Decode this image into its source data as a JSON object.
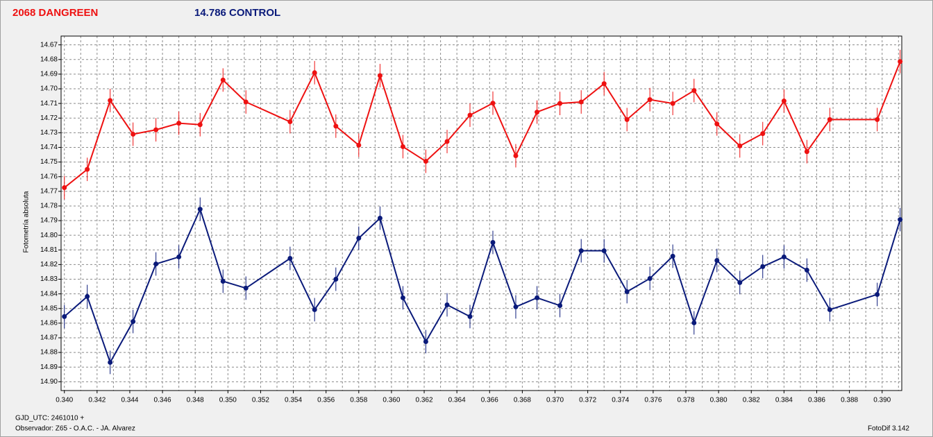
{
  "chart_data": {
    "type": "errorline",
    "xlabel": "GJD_UTC: 2461010 +",
    "ylabel": "Fotometría absoluta",
    "footer_left": "Observador: Z65 - O.A.C. - JA. Alvarez",
    "footer_right": "FotoDif 3.142",
    "x": [
      0.34,
      0.3414,
      0.3428,
      0.3442,
      0.3456,
      0.347,
      0.3483,
      0.3497,
      0.3511,
      0.3538,
      0.3553,
      0.3566,
      0.358,
      0.3593,
      0.3607,
      0.3621,
      0.3634,
      0.3648,
      0.3662,
      0.3676,
      0.3689,
      0.3703,
      0.3716,
      0.373,
      0.3744,
      0.3758,
      0.3772,
      0.3785,
      0.3799,
      0.3813,
      0.3827,
      0.384,
      0.3854,
      0.3868,
      0.3897,
      0.3911
    ],
    "series": [
      {
        "name": "2068 DANGREEN",
        "color": "#ee1111",
        "values": [
          14.7675,
          14.755,
          14.708,
          14.731,
          14.728,
          14.7235,
          14.7245,
          14.694,
          14.709,
          14.7225,
          14.689,
          14.7255,
          14.7385,
          14.691,
          14.7395,
          14.7495,
          14.736,
          14.718,
          14.7098,
          14.7457,
          14.7159,
          14.71,
          14.709,
          14.6965,
          14.721,
          14.7074,
          14.71,
          14.7012,
          14.724,
          14.739,
          14.7306,
          14.7083,
          14.7429,
          14.721,
          14.721,
          14.6814
        ],
        "errors": [
          0.008,
          0.008,
          0.008,
          0.008,
          0.008,
          0.008,
          0.008,
          0.008,
          0.008,
          0.008,
          0.008,
          0.008,
          0.008,
          0.008,
          0.008,
          0.008,
          0.008,
          0.008,
          0.008,
          0.008,
          0.008,
          0.008,
          0.008,
          0.008,
          0.008,
          0.008,
          0.008,
          0.008,
          0.008,
          0.008,
          0.008,
          0.008,
          0.008,
          0.008,
          0.008,
          0.008
        ]
      },
      {
        "name": "14.786 CONTROL",
        "color": "#0a1a7a",
        "values": [
          14.8555,
          14.8418,
          14.8868,
          14.8589,
          14.8196,
          14.8148,
          14.7822,
          14.8314,
          14.8361,
          14.8158,
          14.8508,
          14.83,
          14.802,
          14.7883,
          14.8427,
          14.8726,
          14.8475,
          14.8555,
          14.8049,
          14.8489,
          14.8427,
          14.848,
          14.8106,
          14.8106,
          14.8385,
          14.8295,
          14.8143,
          14.8598,
          14.8172,
          14.8323,
          14.8214,
          14.8148,
          14.8238,
          14.8508,
          14.8404,
          14.7893
        ],
        "errors": [
          0.008,
          0.008,
          0.008,
          0.008,
          0.008,
          0.008,
          0.008,
          0.008,
          0.008,
          0.008,
          0.008,
          0.008,
          0.008,
          0.008,
          0.008,
          0.008,
          0.008,
          0.008,
          0.008,
          0.008,
          0.008,
          0.008,
          0.008,
          0.008,
          0.008,
          0.008,
          0.008,
          0.008,
          0.008,
          0.008,
          0.008,
          0.008,
          0.008,
          0.008,
          0.008,
          0.008
        ]
      }
    ],
    "xlim": [
      0.3398,
      0.3912
    ],
    "xticks": [
      {
        "value": 0.34,
        "label": "0.340"
      },
      0.342,
      0.344,
      0.346,
      0.348,
      {
        "value": 0.35,
        "label": "0.350"
      },
      0.352,
      0.354,
      0.356,
      0.358,
      {
        "value": 0.36,
        "label": "0.360"
      },
      0.362,
      0.364,
      0.366,
      0.368,
      {
        "value": 0.37,
        "label": "0.370"
      },
      0.372,
      0.374,
      0.376,
      0.378,
      {
        "value": 0.38,
        "label": "0.380"
      },
      0.382,
      0.384,
      0.386,
      0.388,
      {
        "value": 0.39,
        "label": "0.390"
      }
    ],
    "xminorticks": [
      0.341,
      0.343,
      0.345,
      0.347,
      0.349,
      0.351,
      0.353,
      0.355,
      0.357,
      0.359,
      0.361,
      0.363,
      0.365,
      0.367,
      0.369,
      0.371,
      0.373,
      0.375,
      0.377,
      0.379,
      0.381,
      0.383,
      0.385,
      0.387,
      0.389,
      0.391
    ],
    "ylim": [
      14.664,
      14.906
    ],
    "y_inverted": true,
    "yticks": [
      14.67,
      14.68,
      14.69,
      {
        "value": 14.7,
        "label": "14.70"
      },
      14.71,
      14.72,
      14.73,
      14.74,
      14.75,
      14.76,
      14.77,
      14.78,
      14.79,
      {
        "value": 14.8,
        "label": "14.80"
      },
      14.81,
      14.82,
      14.83,
      14.84,
      14.85,
      14.86,
      14.87,
      14.88,
      14.89,
      {
        "value": 14.9,
        "label": "14.90"
      }
    ],
    "grid": true
  }
}
